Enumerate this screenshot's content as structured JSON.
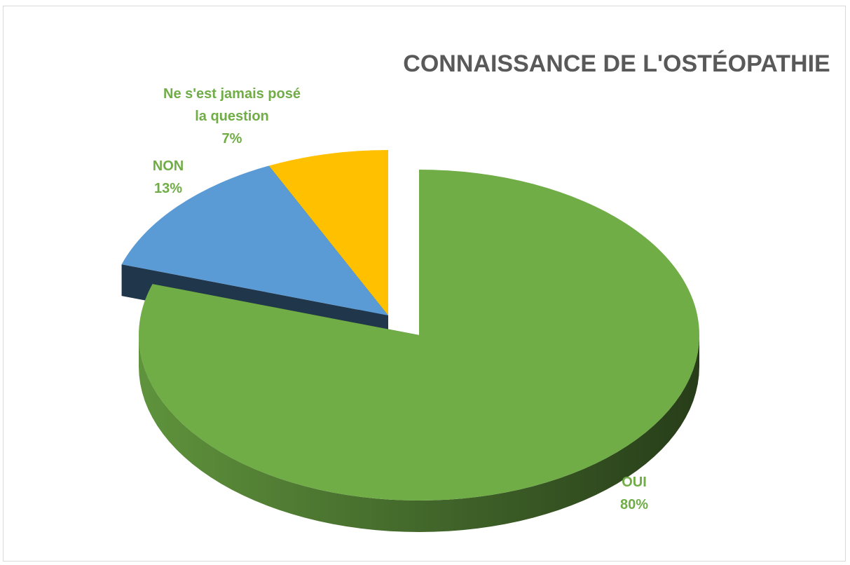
{
  "chart_data": {
    "type": "pie",
    "title": "CONNAISSANCE DE L'OSTÉOPATHIE",
    "categories": [
      "OUI",
      "NON",
      "Ne s'est jamais posé la question"
    ],
    "values": [
      80,
      13,
      7
    ],
    "value_labels": [
      "80%",
      "13%",
      "7%"
    ],
    "colors": [
      "#70ad47",
      "#5b9bd5",
      "#ffc000"
    ]
  }
}
